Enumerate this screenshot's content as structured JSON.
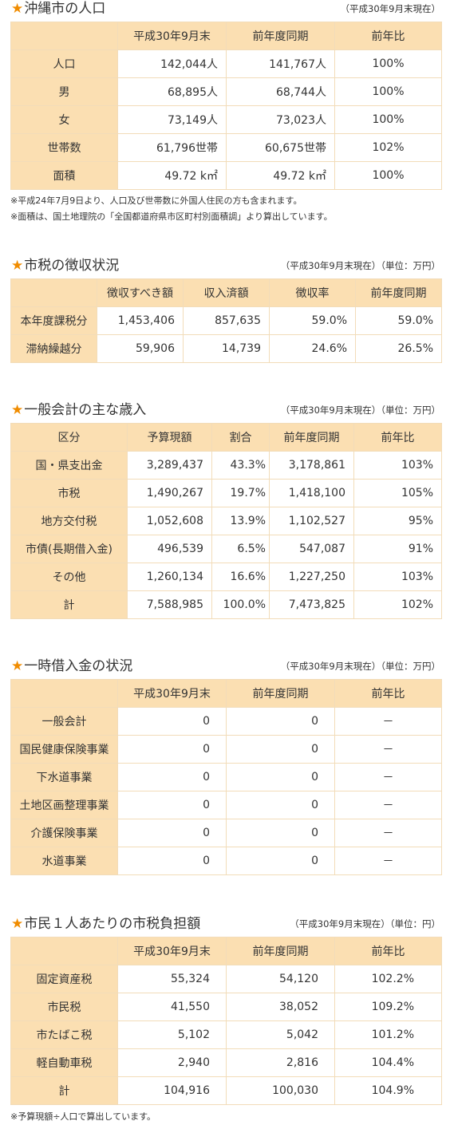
{
  "population": {
    "title": "沖縄市の人口",
    "note": "（平成30年9月末現在）",
    "headers": [
      "",
      "平成30年9月末",
      "前年度同期",
      "前年比"
    ],
    "rows": [
      [
        "人口",
        "142,044人",
        "141,767人",
        "100%"
      ],
      [
        "男",
        "68,895人",
        "68,744人",
        "100%"
      ],
      [
        "女",
        "73,149人",
        "73,023人",
        "100%"
      ],
      [
        "世帯数",
        "61,796世帯",
        "60,675世帯",
        "102%"
      ],
      [
        "面積",
        "49.72 k㎡",
        "49.72 k㎡",
        "100%"
      ]
    ],
    "footnotes": [
      "※平成24年7月9日より、人口及び世帯数に外国人住民の方も含まれます。",
      "※面積は、国土地理院の「全国都道府県市区町村別面積調」より算出しています。"
    ]
  },
  "tax_collection": {
    "title": "市税の徴収状況",
    "note": "（平成30年9月末現在）（単位：万円）",
    "headers": [
      "",
      "徴収すべき額",
      "収入済額",
      "徴収率",
      "前年度同期"
    ],
    "rows": [
      [
        "本年度課税分",
        "1,453,406",
        "857,635",
        "59.0%",
        "59.0%"
      ],
      [
        "滞納繰越分",
        "59,906",
        "14,739",
        "24.6%",
        "26.5%"
      ]
    ]
  },
  "general_revenue": {
    "title": "一般会計の主な歳入",
    "note": "（平成30年9月末現在）（単位：万円）",
    "headers": [
      "区分",
      "予算現額",
      "割合",
      "前年度同期",
      "前年比"
    ],
    "rows": [
      [
        "国・県支出金",
        "3,289,437",
        "43.3%",
        "3,178,861",
        "103%"
      ],
      [
        "市税",
        "1,490,267",
        "19.7%",
        "1,418,100",
        "105%"
      ],
      [
        "地方交付税",
        "1,052,608",
        "13.9%",
        "1,102,527",
        "95%"
      ],
      [
        "市債(長期借入金)",
        "496,539",
        "6.5%",
        "547,087",
        "91%"
      ],
      [
        "その他",
        "1,260,134",
        "16.6%",
        "1,227,250",
        "103%"
      ],
      [
        "計",
        "7,588,985",
        "100.0%",
        "7,473,825",
        "102%"
      ]
    ]
  },
  "temp_borrowing": {
    "title": "一時借入金の状況",
    "note": "（平成30年9月末現在）（単位：万円）",
    "headers": [
      "",
      "平成30年9月末",
      "前年度同期",
      "前年比"
    ],
    "rows": [
      [
        "一般会計",
        "0",
        "0",
        "－"
      ],
      [
        "国民健康保険事業",
        "0",
        "0",
        "－"
      ],
      [
        "下水道事業",
        "0",
        "0",
        "－"
      ],
      [
        "土地区画整理事業",
        "0",
        "0",
        "－"
      ],
      [
        "介護保険事業",
        "0",
        "0",
        "－"
      ],
      [
        "水道事業",
        "0",
        "0",
        "－"
      ]
    ]
  },
  "tax_burden": {
    "title": "市民１人あたりの市税負担額",
    "note": "（平成30年9月末現在）（単位：円）",
    "headers": [
      "",
      "平成30年9月末",
      "前年度同期",
      "前年比"
    ],
    "rows": [
      [
        "固定資産税",
        "55,324",
        "54,120",
        "102.2%"
      ],
      [
        "市民税",
        "41,550",
        "38,052",
        "109.2%"
      ],
      [
        "市たばこ税",
        "5,102",
        "5,042",
        "101.2%"
      ],
      [
        "軽自動車税",
        "2,940",
        "2,816",
        "104.4%"
      ],
      [
        "計",
        "104,916",
        "100,030",
        "104.9%"
      ]
    ],
    "footnotes": [
      "※予算現額÷人口で算出しています。"
    ]
  }
}
